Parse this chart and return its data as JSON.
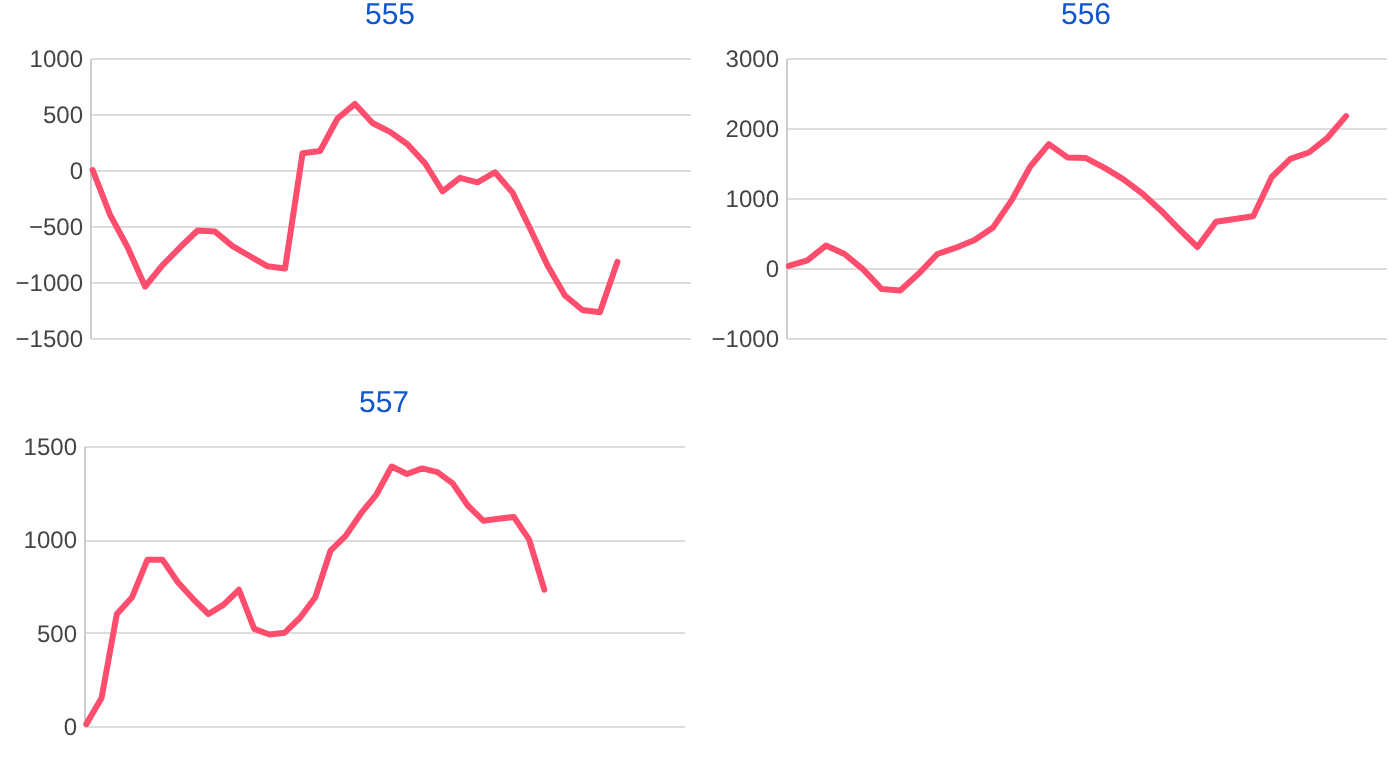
{
  "chart_data": [
    {
      "type": "line",
      "title": "555",
      "categories": [
        null,
        null,
        null,
        null,
        null,
        null,
        null,
        null,
        null,
        null,
        null,
        null,
        null,
        null,
        null,
        null,
        null,
        null,
        null,
        null,
        null,
        null,
        null,
        null,
        null,
        null,
        null,
        null,
        null,
        null,
        null,
        null,
        null,
        null,
        null
      ],
      "values": [
        0,
        -400,
        -690,
        -1040,
        -850,
        -690,
        -540,
        -550,
        -680,
        -770,
        -860,
        -880,
        150,
        170,
        460,
        590,
        420,
        340,
        230,
        60,
        -190,
        -70,
        -110,
        -20,
        -200,
        -520,
        -850,
        -1120,
        -1250,
        -1270,
        -820,
        null,
        null,
        null,
        null
      ],
      "color": "#ff4d6d",
      "ylim": [
        -1500,
        1000
      ],
      "yticks": [
        -1500,
        -1000,
        -500,
        0,
        500,
        1000
      ],
      "grid": "y",
      "tick_labels": "y"
    },
    {
      "type": "line",
      "title": "556",
      "categories": [
        null,
        null,
        null,
        null,
        null,
        null,
        null,
        null,
        null,
        null,
        null,
        null,
        null,
        null,
        null,
        null,
        null,
        null,
        null,
        null,
        null,
        null,
        null,
        null,
        null,
        null,
        null,
        null,
        null,
        null,
        null,
        null,
        null
      ],
      "values": [
        30,
        110,
        320,
        200,
        -20,
        -300,
        -320,
        -80,
        200,
        290,
        400,
        580,
        970,
        1450,
        1770,
        1580,
        1570,
        1430,
        1270,
        1070,
        830,
        560,
        300,
        660,
        700,
        740,
        1300,
        1560,
        1650,
        1860,
        2170,
        null,
        null
      ],
      "color": "#ff4d6d",
      "ylim": [
        -1000,
        3000
      ],
      "yticks": [
        -1000,
        0,
        1000,
        2000,
        3000
      ],
      "grid": "y",
      "tick_labels": "y"
    },
    {
      "type": "line",
      "title": "557",
      "categories": [
        null,
        null,
        null,
        null,
        null,
        null,
        null,
        null,
        null,
        null,
        null,
        null,
        null,
        null,
        null,
        null,
        null,
        null,
        null,
        null,
        null,
        null,
        null,
        null,
        null,
        null,
        null,
        null,
        null,
        null,
        null,
        null,
        null,
        null,
        null,
        null,
        null,
        null,
        null,
        null
      ],
      "values": [
        10,
        150,
        600,
        690,
        890,
        890,
        770,
        680,
        600,
        650,
        730,
        520,
        490,
        500,
        580,
        690,
        940,
        1020,
        1140,
        1240,
        1390,
        1350,
        1380,
        1360,
        1300,
        1180,
        1100,
        1110,
        1120,
        1000,
        730,
        null,
        null,
        null,
        null,
        null,
        null,
        null,
        null,
        null
      ],
      "color": "#ff4d6d",
      "ylim": [
        0,
        1500
      ],
      "yticks": [
        0,
        500,
        1000,
        1500
      ],
      "grid": "y",
      "tick_labels": "y"
    }
  ]
}
